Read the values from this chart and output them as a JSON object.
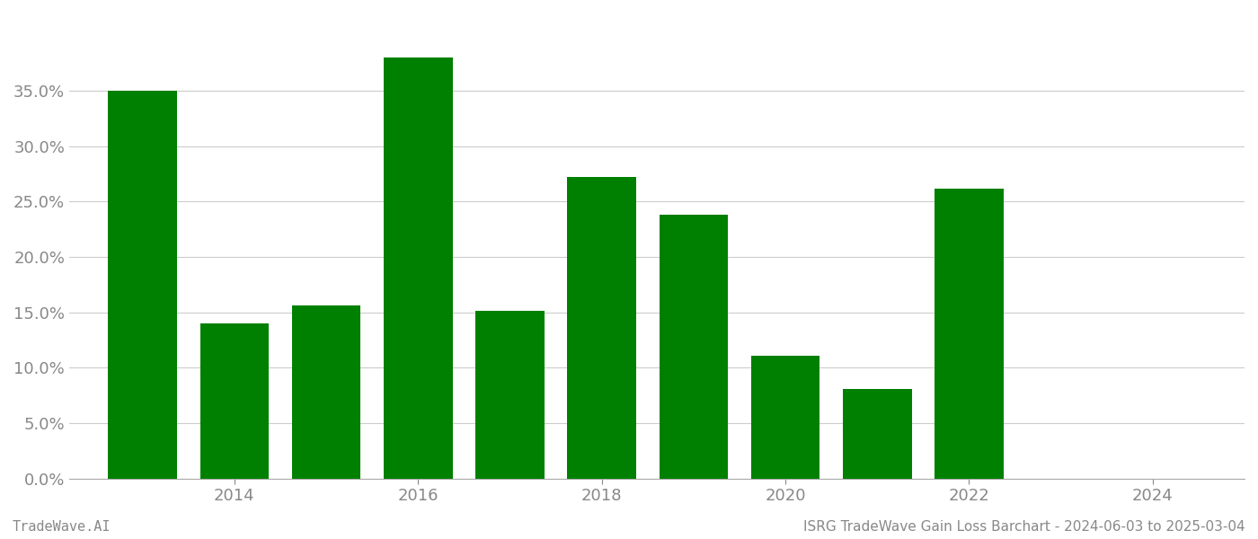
{
  "bar_positions": [
    2013,
    2014,
    2015,
    2016,
    2017,
    2018,
    2019,
    2020,
    2021,
    2022,
    2023
  ],
  "values": [
    0.35,
    0.14,
    0.156,
    0.38,
    0.151,
    0.272,
    0.238,
    0.111,
    0.081,
    0.262,
    0.0
  ],
  "bar_color": "#008000",
  "background_color": "#ffffff",
  "grid_color": "#cccccc",
  "tick_color": "#888888",
  "footer_left": "TradeWave.AI",
  "footer_right": "ISRG TradeWave Gain Loss Barchart - 2024-06-03 to 2025-03-04",
  "ylim": [
    0,
    0.42
  ],
  "yticks": [
    0.0,
    0.05,
    0.1,
    0.15,
    0.2,
    0.25,
    0.3,
    0.35
  ],
  "xtick_positions": [
    2014,
    2016,
    2018,
    2020,
    2022,
    2024
  ],
  "xtick_labels": [
    "2014",
    "2016",
    "2018",
    "2020",
    "2022",
    "2024"
  ],
  "xlim": [
    2012.2,
    2025.0
  ],
  "bar_width": 0.75,
  "figsize": [
    14.0,
    6.0
  ],
  "dpi": 100,
  "font_size_ticks": 13,
  "font_size_footer": 11
}
